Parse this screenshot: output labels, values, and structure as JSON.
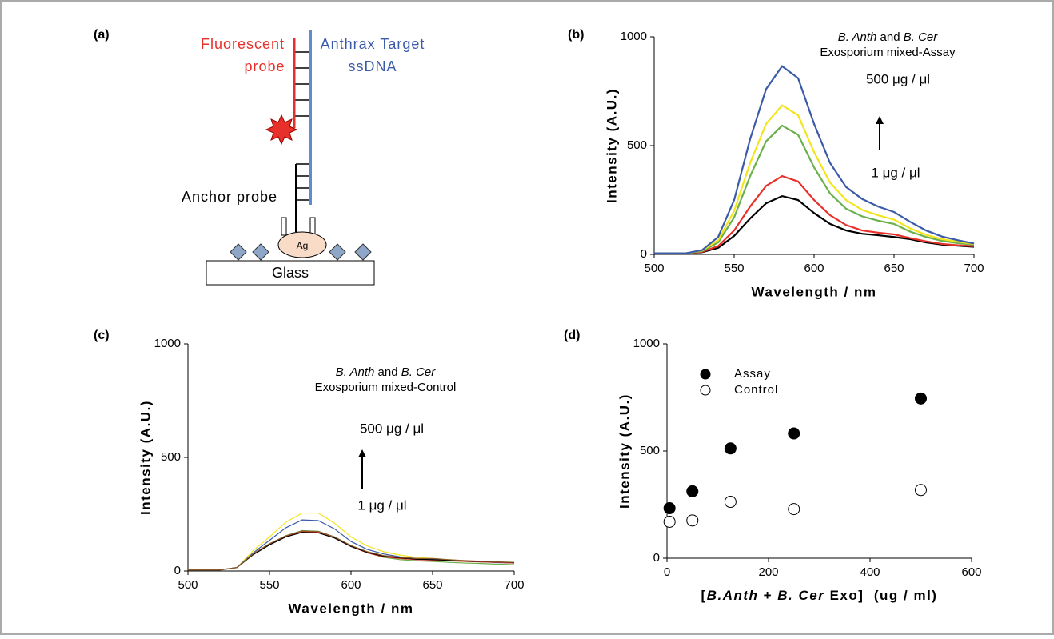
{
  "diagram": {
    "label": "(a)",
    "probe_1": "Fluorescent",
    "probe_2": "probe",
    "target_1": "Anthrax Target",
    "target_2": "ssDNA",
    "anchor": "Anchor probe",
    "ag": "Ag",
    "glass": "Glass"
  },
  "chart_data": [
    {
      "type": "line",
      "label": "(b)",
      "x_label": "Wavelength / nm",
      "y_label": "Intensity (A.U.)",
      "x": [
        500,
        510,
        520,
        530,
        540,
        550,
        560,
        570,
        580,
        590,
        600,
        610,
        620,
        630,
        640,
        650,
        660,
        670,
        680,
        690,
        700
      ],
      "series": [
        {
          "color": "#000000",
          "values": [
            5,
            5,
            5,
            10,
            30,
            85,
            165,
            235,
            268,
            250,
            190,
            140,
            110,
            95,
            88,
            80,
            70,
            55,
            45,
            40,
            35
          ]
        },
        {
          "color": "#e8302a",
          "values": [
            5,
            5,
            5,
            12,
            38,
            110,
            220,
            315,
            360,
            335,
            250,
            180,
            135,
            110,
            100,
            92,
            75,
            60,
            48,
            42,
            38
          ]
        },
        {
          "color": "#6ab04c",
          "values": [
            5,
            5,
            5,
            15,
            55,
            170,
            360,
            520,
            592,
            550,
            400,
            280,
            210,
            175,
            155,
            140,
            105,
            80,
            62,
            52,
            45
          ]
        },
        {
          "color": "#f2e51d",
          "values": [
            5,
            5,
            5,
            18,
            65,
            200,
            420,
            600,
            685,
            640,
            470,
            330,
            250,
            205,
            180,
            160,
            120,
            90,
            70,
            58,
            48
          ]
        },
        {
          "color": "#3b5ba9",
          "values": [
            5,
            5,
            5,
            20,
            80,
            250,
            530,
            760,
            865,
            810,
            600,
            420,
            310,
            255,
            220,
            195,
            150,
            110,
            82,
            65,
            50
          ]
        }
      ],
      "xlim": [
        500,
        700
      ],
      "xticks": [
        500,
        550,
        600,
        650,
        700
      ],
      "ylim": [
        0,
        1000
      ],
      "yticks": [
        0,
        500,
        1000
      ],
      "annotation": {
        "species": [
          "B. Anth",
          " and ",
          "B. Cer"
        ],
        "text": "Exosporium mixed-Assay",
        "high": "500 μg / μl",
        "low": "1 μg / μl"
      }
    },
    {
      "type": "line",
      "label": "(c)",
      "x_label": "Wavelength / nm",
      "y_label": "Intensity (A.U.)",
      "x": [
        500,
        510,
        520,
        530,
        540,
        550,
        560,
        570,
        580,
        590,
        600,
        610,
        620,
        630,
        640,
        650,
        660,
        670,
        680,
        690,
        700
      ],
      "series": [
        {
          "color": "#f2e51d",
          "values": [
            5,
            5,
            5,
            15,
            90,
            150,
            215,
            255,
            255,
            210,
            150,
            110,
            85,
            70,
            60,
            55,
            50,
            45,
            40,
            38,
            35
          ]
        },
        {
          "color": "#3b5ba9",
          "values": [
            5,
            5,
            5,
            15,
            80,
            135,
            190,
            225,
            222,
            185,
            130,
            95,
            75,
            62,
            55,
            52,
            48,
            43,
            40,
            37,
            35
          ]
        },
        {
          "color": "#6ab04c",
          "values": [
            5,
            5,
            5,
            15,
            75,
            120,
            155,
            178,
            175,
            150,
            110,
            80,
            60,
            50,
            45,
            42,
            38,
            35,
            33,
            30,
            28
          ]
        },
        {
          "color": "#e8302a",
          "values": [
            5,
            5,
            5,
            15,
            75,
            118,
            152,
            173,
            170,
            145,
            108,
            80,
            62,
            55,
            50,
            48,
            45,
            42,
            40,
            38,
            35
          ]
        },
        {
          "color": "#000000",
          "values": [
            5,
            5,
            5,
            15,
            72,
            115,
            150,
            170,
            168,
            145,
            108,
            82,
            65,
            58,
            52,
            50,
            47,
            44,
            42,
            40,
            37
          ]
        },
        {
          "color": "#8b5a2b",
          "values": [
            5,
            5,
            5,
            15,
            76,
            120,
            155,
            176,
            174,
            150,
            112,
            85,
            68,
            60,
            55,
            55,
            50,
            46,
            43,
            40,
            38
          ]
        }
      ],
      "xlim": [
        500,
        700
      ],
      "xticks": [
        500,
        550,
        600,
        650,
        700
      ],
      "ylim": [
        0,
        1000
      ],
      "yticks": [
        0,
        500,
        1000
      ],
      "annotation": {
        "species": [
          "B. Anth",
          " and ",
          "B. Cer"
        ],
        "text": "Exosporium mixed-Control",
        "high": "500 μg / μl",
        "low": "1 μg / μl"
      }
    },
    {
      "type": "scatter",
      "label": "(d)",
      "x_label_parts": [
        "[",
        "B.Anth",
        " + ",
        "B. Cer",
        " Exo]  (ug / ml)"
      ],
      "y_label": "Intensity (A.U.)",
      "series": [
        {
          "name": "Assay",
          "color": "#000000",
          "filled": true,
          "x": [
            5,
            50,
            125,
            250,
            500
          ],
          "values": [
            233,
            312,
            512,
            582,
            745
          ]
        },
        {
          "name": "Control",
          "color": "#000000",
          "filled": false,
          "x": [
            5,
            50,
            125,
            250,
            500
          ],
          "values": [
            170,
            176,
            263,
            229,
            318
          ]
        }
      ],
      "xlim": [
        0,
        600
      ],
      "xticks": [
        0,
        200,
        400,
        600
      ],
      "ylim": [
        0,
        1000
      ],
      "yticks": [
        0,
        500,
        1000
      ]
    }
  ]
}
